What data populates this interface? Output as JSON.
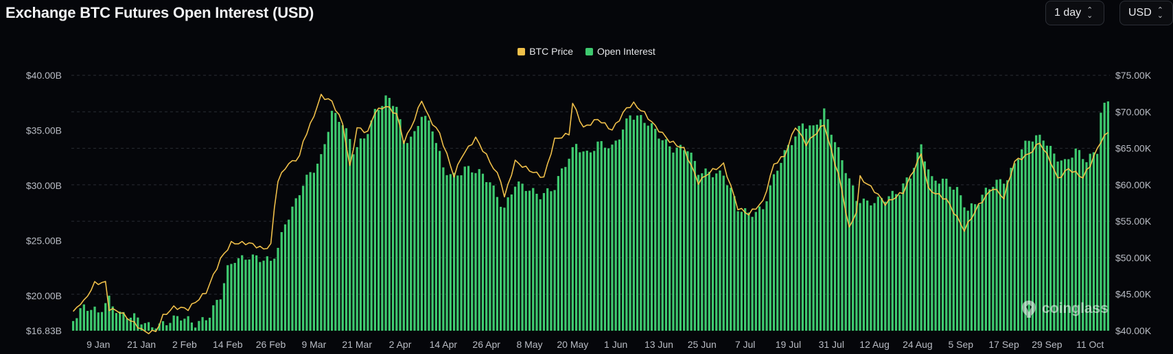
{
  "header": {
    "title": "Exchange BTC Futures Open Interest (USD)",
    "period_label": "1 day",
    "unit_label": "USD"
  },
  "legend": {
    "price_label": "BTC Price",
    "oi_label": "Open Interest"
  },
  "watermark": {
    "text": "coinglass",
    "icon": "coinglass-logo-icon"
  },
  "colors": {
    "price": "#f0c04a",
    "open_interest": "#3ec96f",
    "background": "#05060a",
    "grid": "#2a2d34"
  },
  "chart_data": {
    "type": "bar",
    "title": "Exchange BTC Futures Open Interest (USD)",
    "left_axis": {
      "ticks": [
        "$40.00B",
        "$35.00B",
        "$30.00B",
        "$25.00B",
        "$20.00B",
        "$16.83B"
      ],
      "tick_values": [
        40,
        35,
        30,
        25,
        20,
        16.83
      ],
      "range": [
        16.83,
        40
      ],
      "unit": "B USD"
    },
    "right_axis": {
      "ticks": [
        "$75.00K",
        "$70.00K",
        "$65.00K",
        "$60.00K",
        "$55.00K",
        "$50.00K",
        "$45.00K",
        "$40.00K"
      ],
      "tick_values": [
        75,
        70,
        65,
        60,
        55,
        50,
        45,
        40
      ],
      "range": [
        40,
        75
      ],
      "unit": "K USD"
    },
    "x_labels": [
      "9 Jan",
      "21 Jan",
      "2 Feb",
      "14 Feb",
      "26 Feb",
      "9 Mar",
      "21 Mar",
      "2 Apr",
      "14 Apr",
      "26 Apr",
      "8 May",
      "20 May",
      "1 Jun",
      "13 Jun",
      "25 Jun",
      "7 Jul",
      "19 Jul",
      "31 Jul",
      "12 Aug",
      "24 Aug",
      "5 Sep",
      "17 Sep",
      "29 Sep",
      "11 Oct"
    ],
    "x_start": "2024-01-02",
    "x_end": "2024-10-16",
    "grid": true,
    "legend_position": "top-center",
    "oi_anchors": [
      [
        "2024-01-02",
        18.1
      ],
      [
        "2024-01-05",
        19.0
      ],
      [
        "2024-01-09",
        18.3
      ],
      [
        "2024-01-12",
        19.8
      ],
      [
        "2024-01-15",
        18.5
      ],
      [
        "2024-01-19",
        17.9
      ],
      [
        "2024-01-23",
        17.3
      ],
      [
        "2024-01-26",
        17.5
      ],
      [
        "2024-02-01",
        17.9
      ],
      [
        "2024-02-05",
        17.6
      ],
      [
        "2024-02-09",
        18.3
      ],
      [
        "2024-02-12",
        19.8
      ],
      [
        "2024-02-14",
        22.3
      ],
      [
        "2024-02-16",
        23.4
      ],
      [
        "2024-02-20",
        23.7
      ],
      [
        "2024-02-23",
        23.2
      ],
      [
        "2024-02-26",
        23.0
      ],
      [
        "2024-02-28",
        24.4
      ],
      [
        "2024-03-01",
        26.8
      ],
      [
        "2024-03-04",
        28.6
      ],
      [
        "2024-03-06",
        30.0
      ],
      [
        "2024-03-09",
        31.4
      ],
      [
        "2024-03-11",
        32.6
      ],
      [
        "2024-03-13",
        35.4
      ],
      [
        "2024-03-14",
        36.8
      ],
      [
        "2024-03-17",
        35.6
      ],
      [
        "2024-03-20",
        33.0
      ],
      [
        "2024-03-23",
        34.4
      ],
      [
        "2024-03-26",
        36.8
      ],
      [
        "2024-03-29",
        37.8
      ],
      [
        "2024-04-01",
        37.1
      ],
      [
        "2024-04-03",
        34.1
      ],
      [
        "2024-04-06",
        34.8
      ],
      [
        "2024-04-08",
        36.6
      ],
      [
        "2024-04-11",
        35.0
      ],
      [
        "2024-04-14",
        31.5
      ],
      [
        "2024-04-17",
        31.0
      ],
      [
        "2024-04-20",
        31.6
      ],
      [
        "2024-04-24",
        31.0
      ],
      [
        "2024-04-27",
        30.4
      ],
      [
        "2024-05-01",
        28.0
      ],
      [
        "2024-05-04",
        30.0
      ],
      [
        "2024-05-07",
        29.7
      ],
      [
        "2024-05-11",
        29.3
      ],
      [
        "2024-05-15",
        29.8
      ],
      [
        "2024-05-18",
        31.8
      ],
      [
        "2024-05-21",
        33.8
      ],
      [
        "2024-05-24",
        33.0
      ],
      [
        "2024-05-27",
        33.7
      ],
      [
        "2024-05-31",
        33.3
      ],
      [
        "2024-06-05",
        36.6
      ],
      [
        "2024-06-08",
        36.0
      ],
      [
        "2024-06-11",
        35.2
      ],
      [
        "2024-06-14",
        34.3
      ],
      [
        "2024-06-17",
        33.5
      ],
      [
        "2024-06-21",
        33.2
      ],
      [
        "2024-06-24",
        31.2
      ],
      [
        "2024-06-27",
        31.4
      ],
      [
        "2024-07-01",
        31.0
      ],
      [
        "2024-07-05",
        27.8
      ],
      [
        "2024-07-08",
        27.6
      ],
      [
        "2024-07-12",
        28.0
      ],
      [
        "2024-07-16",
        31.4
      ],
      [
        "2024-07-19",
        33.6
      ],
      [
        "2024-07-23",
        35.8
      ],
      [
        "2024-07-26",
        35.0
      ],
      [
        "2024-07-29",
        36.6
      ],
      [
        "2024-08-01",
        34.2
      ],
      [
        "2024-08-04",
        31.6
      ],
      [
        "2024-08-07",
        28.6
      ],
      [
        "2024-08-10",
        28.3
      ],
      [
        "2024-08-14",
        29.0
      ],
      [
        "2024-08-19",
        29.3
      ],
      [
        "2024-08-22",
        30.8
      ],
      [
        "2024-08-25",
        33.8
      ],
      [
        "2024-08-28",
        30.6
      ],
      [
        "2024-08-31",
        30.3
      ],
      [
        "2024-09-04",
        29.6
      ],
      [
        "2024-09-07",
        28.0
      ],
      [
        "2024-09-10",
        28.6
      ],
      [
        "2024-09-14",
        30.0
      ],
      [
        "2024-09-18",
        30.8
      ],
      [
        "2024-09-21",
        32.8
      ],
      [
        "2024-09-24",
        34.0
      ],
      [
        "2024-09-28",
        34.4
      ],
      [
        "2024-10-01",
        33.0
      ],
      [
        "2024-10-04",
        32.0
      ],
      [
        "2024-10-07",
        33.0
      ],
      [
        "2024-10-10",
        32.4
      ],
      [
        "2024-10-13",
        33.4
      ],
      [
        "2024-10-14",
        36.8
      ],
      [
        "2024-10-16",
        37.6
      ]
    ],
    "price_anchors": [
      [
        "2024-01-02",
        42.5
      ],
      [
        "2024-01-04",
        43.8
      ],
      [
        "2024-01-05",
        44.0
      ],
      [
        "2024-01-08",
        46.5
      ],
      [
        "2024-01-11",
        46.6
      ],
      [
        "2024-01-12",
        43.0
      ],
      [
        "2024-01-15",
        42.6
      ],
      [
        "2024-01-18",
        41.4
      ],
      [
        "2024-01-22",
        39.8
      ],
      [
        "2024-01-25",
        39.9
      ],
      [
        "2024-01-27",
        42.0
      ],
      [
        "2024-01-30",
        43.2
      ],
      [
        "2024-02-03",
        43.0
      ],
      [
        "2024-02-08",
        45.3
      ],
      [
        "2024-02-12",
        49.8
      ],
      [
        "2024-02-15",
        52.0
      ],
      [
        "2024-02-20",
        52.0
      ],
      [
        "2024-02-24",
        51.2
      ],
      [
        "2024-02-26",
        51.7
      ],
      [
        "2024-02-27",
        57.0
      ],
      [
        "2024-02-28",
        60.5
      ],
      [
        "2024-03-01",
        62.4
      ],
      [
        "2024-03-03",
        63.2
      ],
      [
        "2024-03-05",
        63.8
      ],
      [
        "2024-03-06",
        66.0
      ],
      [
        "2024-03-08",
        68.2
      ],
      [
        "2024-03-11",
        72.2
      ],
      [
        "2024-03-14",
        71.4
      ],
      [
        "2024-03-17",
        68.4
      ],
      [
        "2024-03-19",
        62.4
      ],
      [
        "2024-03-21",
        67.8
      ],
      [
        "2024-03-24",
        67.2
      ],
      [
        "2024-03-26",
        70.0
      ],
      [
        "2024-03-29",
        70.8
      ],
      [
        "2024-04-01",
        69.7
      ],
      [
        "2024-04-03",
        65.9
      ],
      [
        "2024-04-05",
        67.8
      ],
      [
        "2024-04-08",
        71.6
      ],
      [
        "2024-04-10",
        69.2
      ],
      [
        "2024-04-13",
        67.0
      ],
      [
        "2024-04-17",
        61.2
      ],
      [
        "2024-04-19",
        63.8
      ],
      [
        "2024-04-23",
        66.4
      ],
      [
        "2024-04-26",
        64.0
      ],
      [
        "2024-04-30",
        60.6
      ],
      [
        "2024-05-01",
        58.3
      ],
      [
        "2024-05-04",
        63.2
      ],
      [
        "2024-05-08",
        62.0
      ],
      [
        "2024-05-12",
        61.0
      ],
      [
        "2024-05-15",
        66.2
      ],
      [
        "2024-05-19",
        67.0
      ],
      [
        "2024-05-20",
        71.2
      ],
      [
        "2024-05-23",
        67.8
      ],
      [
        "2024-05-27",
        69.0
      ],
      [
        "2024-05-31",
        67.5
      ],
      [
        "2024-06-04",
        70.5
      ],
      [
        "2024-06-06",
        71.1
      ],
      [
        "2024-06-09",
        69.8
      ],
      [
        "2024-06-12",
        68.0
      ],
      [
        "2024-06-16",
        66.0
      ],
      [
        "2024-06-20",
        64.9
      ],
      [
        "2024-06-24",
        60.3
      ],
      [
        "2024-06-27",
        61.7
      ],
      [
        "2024-07-01",
        62.8
      ],
      [
        "2024-07-05",
        56.8
      ],
      [
        "2024-07-08",
        56.0
      ],
      [
        "2024-07-12",
        57.7
      ],
      [
        "2024-07-15",
        62.8
      ],
      [
        "2024-07-18",
        64.0
      ],
      [
        "2024-07-21",
        68.0
      ],
      [
        "2024-07-24",
        65.6
      ],
      [
        "2024-07-29",
        68.3
      ],
      [
        "2024-07-31",
        64.6
      ],
      [
        "2024-08-02",
        61.4
      ],
      [
        "2024-08-05",
        54.0
      ],
      [
        "2024-08-07",
        56.4
      ],
      [
        "2024-08-08",
        61.0
      ],
      [
        "2024-08-12",
        59.2
      ],
      [
        "2024-08-15",
        57.4
      ],
      [
        "2024-08-20",
        59.0
      ],
      [
        "2024-08-25",
        64.2
      ],
      [
        "2024-08-27",
        59.4
      ],
      [
        "2024-09-01",
        58.0
      ],
      [
        "2024-09-06",
        53.8
      ],
      [
        "2024-09-10",
        57.2
      ],
      [
        "2024-09-14",
        59.6
      ],
      [
        "2024-09-17",
        58.2
      ],
      [
        "2024-09-20",
        63.2
      ],
      [
        "2024-09-24",
        64.2
      ],
      [
        "2024-09-27",
        65.8
      ],
      [
        "2024-09-30",
        63.2
      ],
      [
        "2024-10-02",
        60.8
      ],
      [
        "2024-10-05",
        62.2
      ],
      [
        "2024-10-09",
        61.0
      ],
      [
        "2024-10-11",
        62.7
      ],
      [
        "2024-10-14",
        66.0
      ],
      [
        "2024-10-16",
        67.2
      ]
    ]
  }
}
